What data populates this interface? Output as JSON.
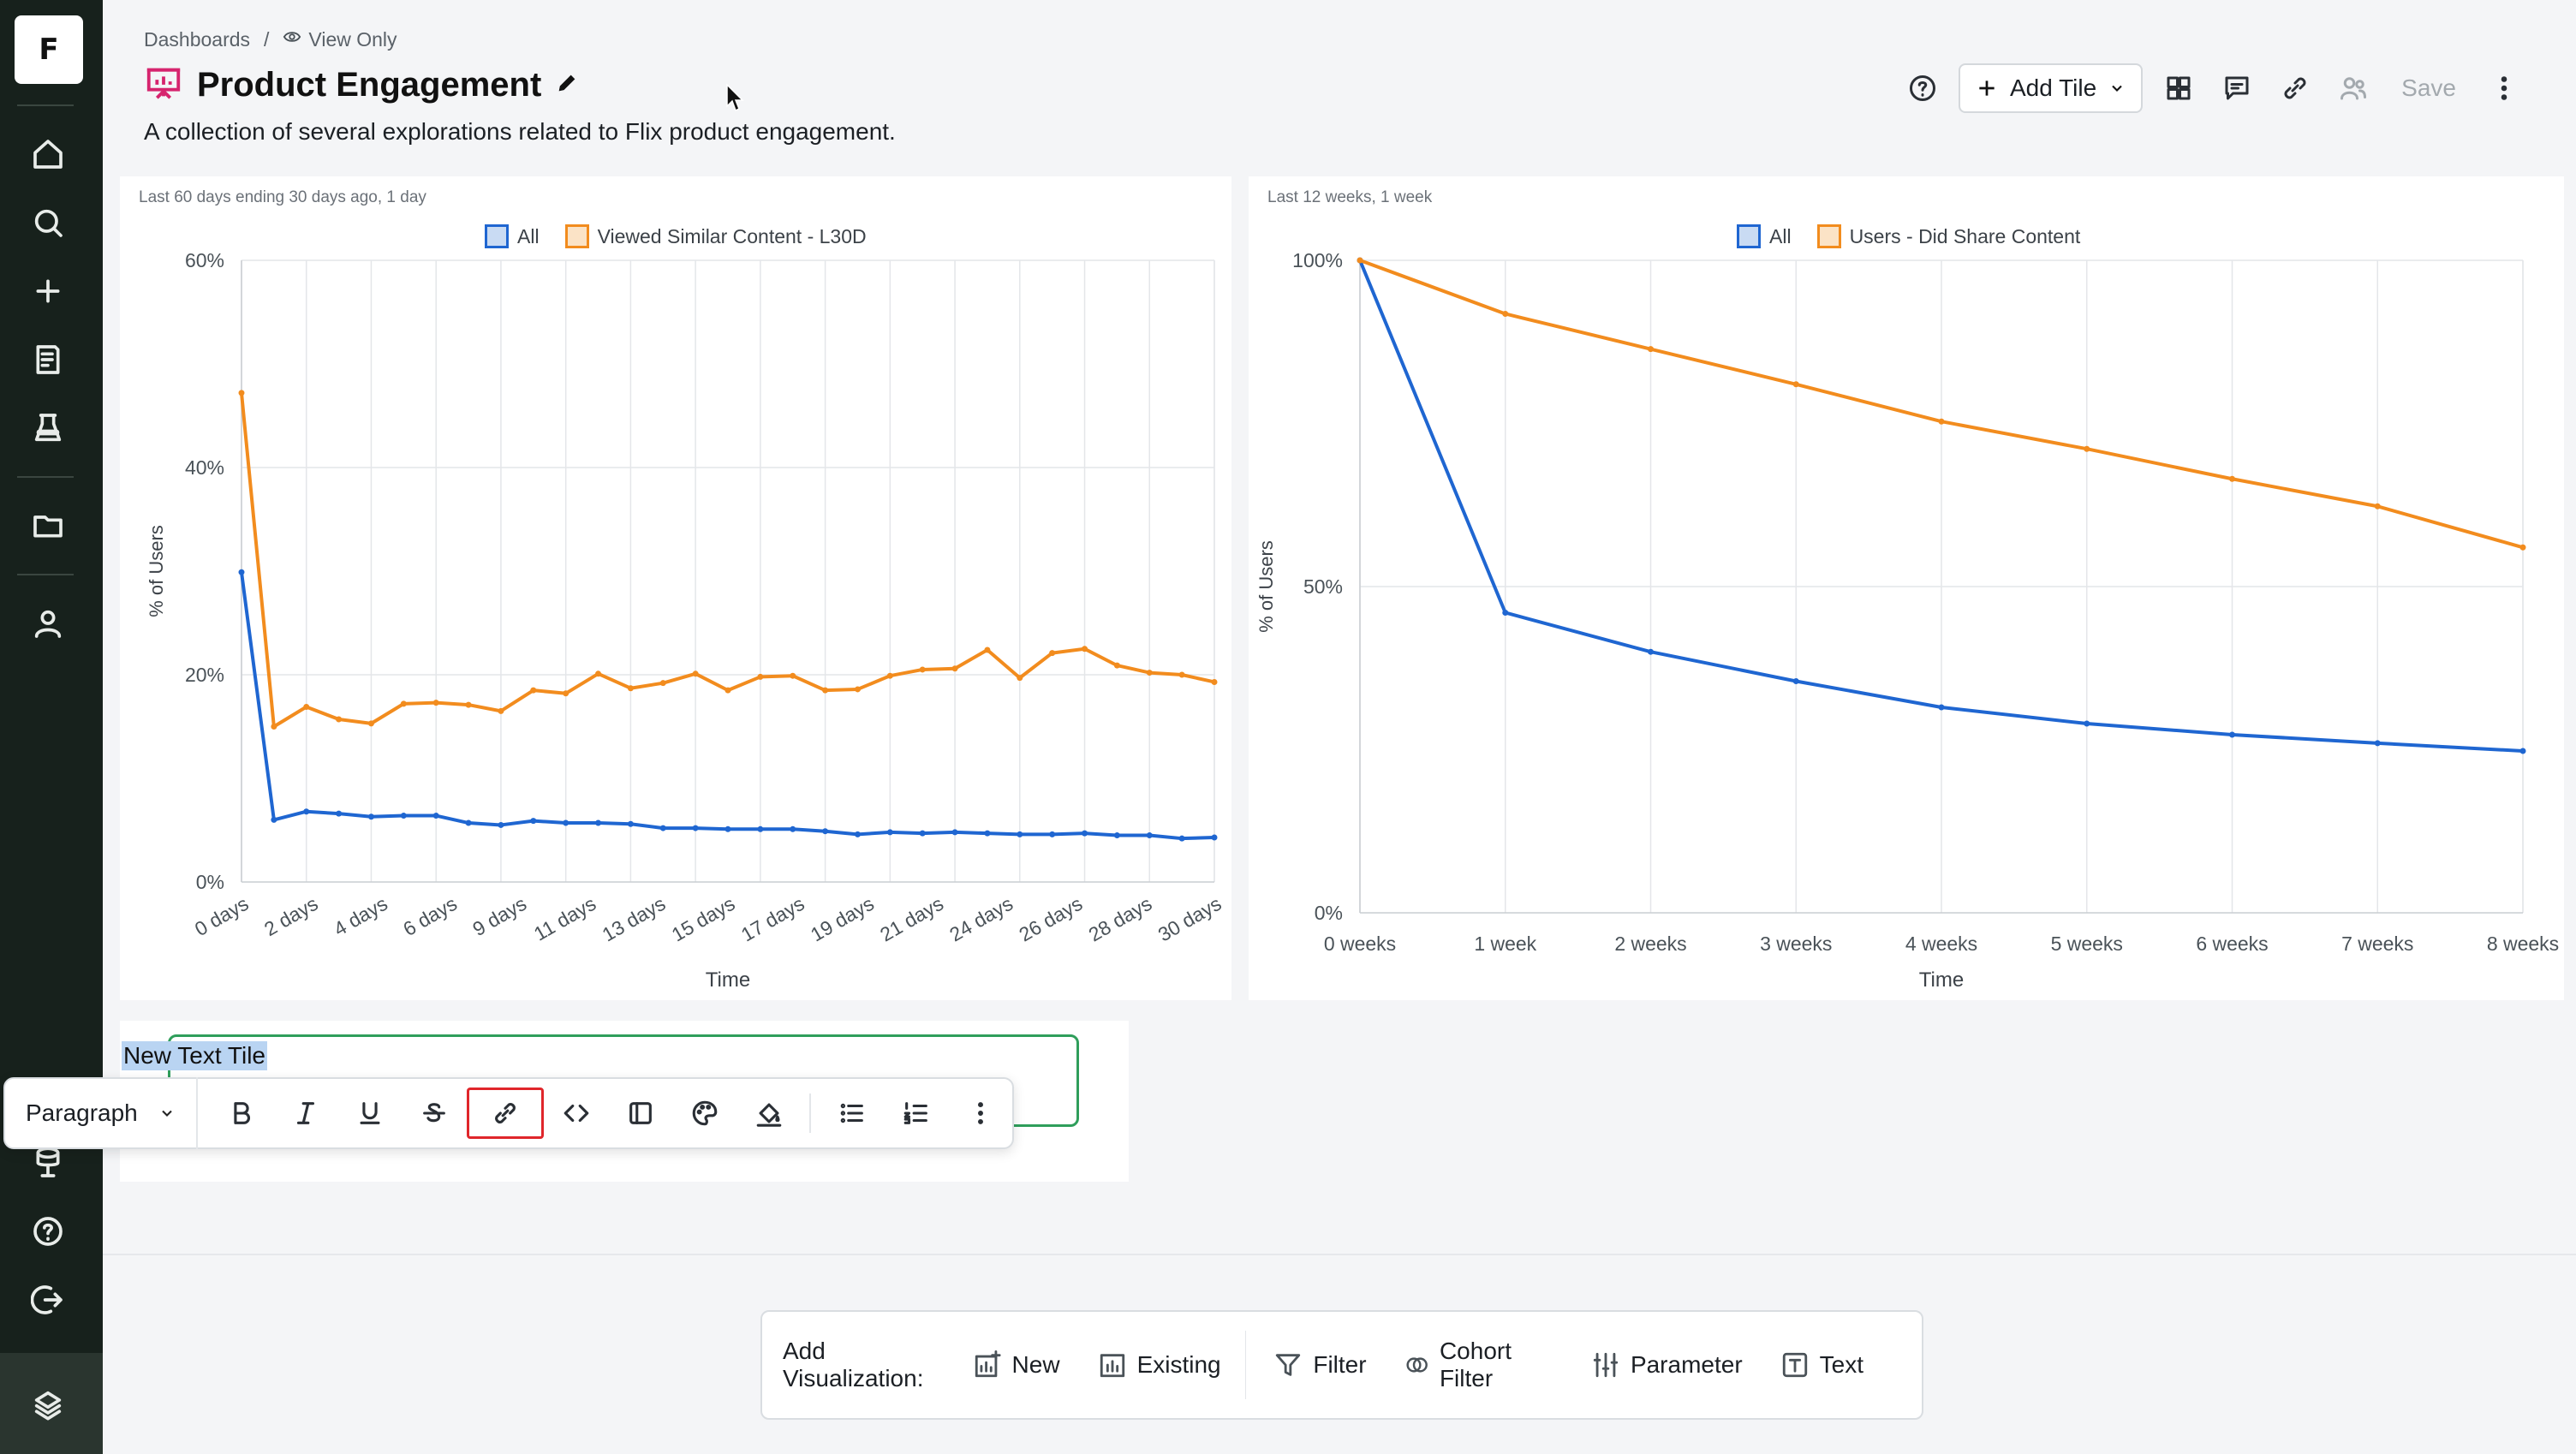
{
  "sidebar": {
    "logo_letter": "F",
    "items": [
      "home-icon",
      "search-icon",
      "plus-icon",
      "notebook-icon",
      "lab-icon",
      "folder-icon",
      "user-icon",
      "database-icon",
      "help-icon",
      "logout-icon",
      "brand-icon"
    ]
  },
  "header": {
    "breadcrumb_root": "Dashboards",
    "breadcrumb_sep": "/",
    "view_mode": "View Only",
    "title": "Product Engagement",
    "description": "A collection of several explorations related to Flix product engagement.",
    "add_tile_label": "Add Tile",
    "save_label": "Save"
  },
  "chart_data": [
    {
      "type": "line",
      "meta": "Last 60 days ending 30 days ago, 1 day",
      "xlabel": "Time",
      "ylabel": "% of Users",
      "ylim": [
        0,
        60
      ],
      "ytick_labels": [
        "0%",
        "20%",
        "40%",
        "60%"
      ],
      "x": [
        0,
        1,
        2,
        3,
        4,
        5,
        6,
        7,
        8,
        9,
        10,
        11,
        12,
        13,
        14,
        15,
        16,
        17,
        18,
        19,
        20,
        21,
        22,
        23,
        24,
        25,
        26,
        27,
        28,
        29,
        30
      ],
      "xtick_labels": [
        "0 days",
        "2 days",
        "4 days",
        "6 days",
        "9 days",
        "11 days",
        "13 days",
        "15 days",
        "17 days",
        "19 days",
        "21 days",
        "24 days",
        "26 days",
        "28 days",
        "30 days"
      ],
      "legend_position": "top",
      "series": [
        {
          "name": "All",
          "color": "#1f66d1",
          "values": [
            29.9,
            6.0,
            6.8,
            6.6,
            6.3,
            6.4,
            6.4,
            5.7,
            5.5,
            5.9,
            5.7,
            5.7,
            5.6,
            5.2,
            5.2,
            5.1,
            5.1,
            5.1,
            4.9,
            4.6,
            4.8,
            4.7,
            4.8,
            4.7,
            4.6,
            4.6,
            4.7,
            4.5,
            4.5,
            4.2,
            4.3
          ]
        },
        {
          "name": "Viewed Similar Content - L30D",
          "color": "#f28c1e",
          "values": [
            47.2,
            15.0,
            16.9,
            15.7,
            15.3,
            17.2,
            17.3,
            17.1,
            16.5,
            18.5,
            18.2,
            20.1,
            18.7,
            19.2,
            20.1,
            18.5,
            19.8,
            19.9,
            18.5,
            18.6,
            19.9,
            20.5,
            20.6,
            22.4,
            19.7,
            22.1,
            22.5,
            20.9,
            20.2,
            20.0,
            19.3
          ]
        }
      ]
    },
    {
      "type": "line",
      "meta": "Last 12 weeks, 1 week",
      "xlabel": "Time",
      "ylabel": "% of Users",
      "ylim": [
        0,
        100
      ],
      "ytick_labels": [
        "0%",
        "50%",
        "100%"
      ],
      "categories": [
        "0 weeks",
        "1 week",
        "2 weeks",
        "3 weeks",
        "4 weeks",
        "5 weeks",
        "6 weeks",
        "7 weeks",
        "8 weeks"
      ],
      "legend_position": "top",
      "series": [
        {
          "name": "All",
          "color": "#1f66d1",
          "values": [
            100,
            46,
            40,
            35.5,
            31.5,
            29,
            27.3,
            26,
            24.8
          ]
        },
        {
          "name": "Users - Did Share Content",
          "color": "#f28c1e",
          "values": [
            100,
            91.8,
            86.4,
            81,
            75.3,
            71.1,
            66.5,
            62.3,
            56
          ]
        }
      ]
    }
  ],
  "text_tile": {
    "content": "New Text Tile"
  },
  "format_toolbar": {
    "block_type": "Paragraph",
    "buttons": [
      "bold-icon",
      "italic-icon",
      "underline-icon",
      "strikethrough-icon",
      "link-icon",
      "code-icon",
      "block-icon",
      "palette-icon",
      "fill-icon",
      "bullet-list-icon",
      "numbered-list-icon",
      "more-icon"
    ],
    "highlighted": "link-icon"
  },
  "add_bar": {
    "label": "Add Visualization:",
    "items": [
      {
        "label": "New",
        "icon": "new-chart-icon"
      },
      {
        "label": "Existing",
        "icon": "existing-chart-icon"
      },
      {
        "label": "Filter",
        "icon": "filter-icon"
      },
      {
        "label": "Cohort Filter",
        "icon": "cohort-icon"
      },
      {
        "label": "Parameter",
        "icon": "parameter-icon"
      },
      {
        "label": "Text",
        "icon": "text-icon"
      }
    ]
  },
  "colors": {
    "sidebar_bg": "#17211c",
    "series_blue": "#1f66d1",
    "series_orange": "#f28c1e",
    "highlight_red": "#e0262b",
    "text_tile_border": "#2f9e5b"
  }
}
